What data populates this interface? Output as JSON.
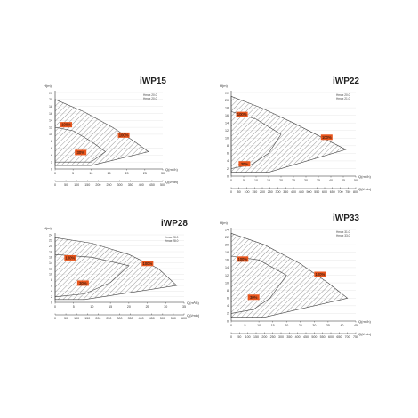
{
  "colors": {
    "badge": "#e8551c",
    "hatch": "#555555",
    "curve": "#444444",
    "axis": "#333333"
  },
  "chart_data": [
    {
      "type": "area",
      "title": "iWP15",
      "ylabel": "H(m)",
      "xlabel": "Q(m³/h)",
      "x2label": "Q(l/min)",
      "notes": [
        "Hmax 20.0",
        "Hmax 20.0"
      ],
      "ylim": [
        0,
        22
      ],
      "yticks": [
        0,
        2,
        4,
        6,
        8,
        10,
        12,
        14,
        16,
        18,
        20,
        22
      ],
      "xlim": [
        0,
        30
      ],
      "xticks": [
        0,
        5,
        10,
        15,
        20,
        25,
        30
      ],
      "x2ticks": [
        "0",
        "50",
        "100",
        "150",
        "200",
        "250",
        "300",
        "350",
        "400",
        "450",
        "500"
      ],
      "x2max": 500,
      "outer": [
        [
          0,
          20
        ],
        [
          8,
          16.5
        ],
        [
          16,
          12
        ],
        [
          22,
          8
        ],
        [
          26,
          5
        ],
        [
          10,
          1
        ],
        [
          0,
          1
        ]
      ],
      "inner": [
        [
          0,
          12
        ],
        [
          5,
          11
        ],
        [
          10,
          8
        ],
        [
          14,
          5
        ],
        [
          10,
          2
        ],
        [
          0,
          2
        ]
      ],
      "labels": [
        {
          "text": "100%",
          "x": 1.5,
          "y": 12.5
        },
        {
          "text": "100%",
          "x": 17.5,
          "y": 9.5
        },
        {
          "text": "30%",
          "x": 5.5,
          "y": 4.5
        }
      ]
    },
    {
      "type": "area",
      "title": "iWP22",
      "ylabel": "H(m)",
      "xlabel": "Q(m³/h)",
      "x2label": "Q(l/min)",
      "notes": [
        "Hmax 20.0",
        "Hmax 21.0"
      ],
      "ylim": [
        0,
        22
      ],
      "yticks": [
        0,
        2,
        4,
        6,
        8,
        10,
        12,
        14,
        16,
        18,
        20,
        22
      ],
      "xlim": [
        0,
        50
      ],
      "xticks": [
        0,
        5,
        10,
        15,
        20,
        25,
        30,
        35,
        40,
        45,
        50
      ],
      "x2ticks": [
        "0",
        "50",
        "100",
        "150",
        "200",
        "250",
        "300",
        "350",
        "400",
        "450",
        "500",
        "550",
        "600",
        "650",
        "700",
        "750",
        "800"
      ],
      "x2max": 800,
      "outer": [
        [
          0,
          21
        ],
        [
          12,
          18
        ],
        [
          25,
          14
        ],
        [
          37,
          10
        ],
        [
          46,
          7
        ],
        [
          15,
          1
        ],
        [
          0,
          1
        ]
      ],
      "inner": [
        [
          0,
          17
        ],
        [
          10,
          15
        ],
        [
          20,
          11
        ],
        [
          15,
          6
        ],
        [
          8,
          3
        ],
        [
          0,
          2
        ]
      ],
      "labels": [
        {
          "text": "100%",
          "x": 2,
          "y": 16
        },
        {
          "text": "100%",
          "x": 36,
          "y": 10
        },
        {
          "text": "30%",
          "x": 3,
          "y": 3
        }
      ]
    },
    {
      "type": "area",
      "title": "iWP28",
      "ylabel": "H(m)",
      "xlabel": "Q(m³/h)",
      "x2label": "Q(l/min)",
      "notes": [
        "Hmax 28.0",
        "Hmax 28.0"
      ],
      "ylim": [
        0,
        24
      ],
      "yticks": [
        0,
        2,
        4,
        6,
        8,
        10,
        12,
        14,
        16,
        18,
        20,
        22,
        24
      ],
      "xlim": [
        0,
        35
      ],
      "xticks": [
        0,
        5,
        10,
        15,
        20,
        25,
        30,
        35
      ],
      "x2ticks": [
        "0",
        "50",
        "100",
        "150",
        "200",
        "250",
        "300",
        "350",
        "400",
        "450",
        "500",
        "550",
        "600"
      ],
      "x2max": 600,
      "outer": [
        [
          0,
          23
        ],
        [
          10,
          21
        ],
        [
          20,
          17
        ],
        [
          28,
          12
        ],
        [
          33,
          6
        ],
        [
          8,
          1
        ],
        [
          0,
          1
        ]
      ],
      "inner": [
        [
          0,
          17
        ],
        [
          10,
          16
        ],
        [
          20,
          13
        ],
        [
          15,
          7
        ],
        [
          8,
          3
        ],
        [
          0,
          2
        ]
      ],
      "labels": [
        {
          "text": "100%",
          "x": 2.5,
          "y": 15.5
        },
        {
          "text": "100%",
          "x": 23.5,
          "y": 13.5
        },
        {
          "text": "30%",
          "x": 6,
          "y": 6.5
        }
      ]
    },
    {
      "type": "area",
      "title": "iWP33",
      "ylabel": "H(m)",
      "xlabel": "Q(m³/h)",
      "x2label": "Q(l/min)",
      "notes": [
        "Hmax 31.0",
        "Hmax 33.0"
      ],
      "ylim": [
        0,
        24
      ],
      "yticks": [
        0,
        2,
        4,
        6,
        8,
        10,
        12,
        14,
        16,
        18,
        20,
        22,
        24
      ],
      "xlim": [
        0,
        45
      ],
      "xticks": [
        0,
        5,
        10,
        15,
        20,
        25,
        30,
        35,
        40,
        45
      ],
      "x2ticks": [
        "0",
        "50",
        "100",
        "150",
        "200",
        "250",
        "300",
        "350",
        "400",
        "450",
        "500",
        "550",
        "600",
        "650",
        "700",
        "750"
      ],
      "x2max": 750,
      "outer": [
        [
          0,
          23
        ],
        [
          12,
          20
        ],
        [
          25,
          15
        ],
        [
          35,
          10
        ],
        [
          42,
          6
        ],
        [
          12,
          1
        ],
        [
          0,
          1
        ]
      ],
      "inner": [
        [
          0,
          17
        ],
        [
          10,
          16
        ],
        [
          20,
          12
        ],
        [
          14,
          6
        ],
        [
          8,
          3
        ],
        [
          0,
          2
        ]
      ],
      "labels": [
        {
          "text": "100%",
          "x": 2,
          "y": 16
        },
        {
          "text": "100%",
          "x": 30,
          "y": 12
        },
        {
          "text": "30%",
          "x": 6,
          "y": 6
        }
      ]
    }
  ]
}
